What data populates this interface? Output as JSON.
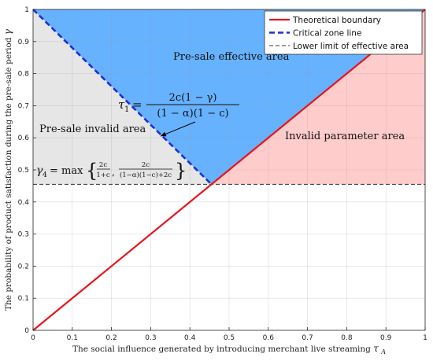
{
  "chart_data": {
    "type": "area",
    "xlabel": "The social influence generated by introducing merchant live streaming",
    "xlabel_symbol": "τ",
    "xlabel_sub": "A",
    "ylabel": "The probability of product satisfaction during the pre-sale period",
    "ylabel_symbol": "γ",
    "xlim": [
      0,
      1
    ],
    "ylim": [
      0,
      1
    ],
    "xticks": [
      "0",
      "0.1",
      "0.2",
      "0.3",
      "0.4",
      "0.5",
      "0.6",
      "0.7",
      "0.8",
      "0.9",
      "1"
    ],
    "yticks": [
      "0",
      "0.1",
      "0.2",
      "0.3",
      "0.4",
      "0.5",
      "0.6",
      "0.7",
      "0.8",
      "0.9",
      "1"
    ],
    "grid": true,
    "legend_position": "top-right",
    "intersection": {
      "x": 0.455,
      "y": 0.455
    },
    "series": [
      {
        "name": "Theoretical boundary",
        "style": "solid",
        "color": "#e8141c",
        "x": [
          0,
          1
        ],
        "y": [
          0,
          1
        ]
      },
      {
        "name": "Critical zone line",
        "style": "dashed",
        "color": "#1f2fd6",
        "x": [
          0,
          0.455
        ],
        "y": [
          1,
          0.455
        ]
      },
      {
        "name": "Lower limit of effective area",
        "style": "dashed-thin",
        "color": "#333333",
        "x": [
          0,
          1
        ],
        "y": [
          0.455,
          0.455
        ]
      }
    ],
    "regions": [
      {
        "label": "Pre-sale effective area",
        "color": "#66b2ff",
        "points": [
          [
            0,
            1
          ],
          [
            1,
            1
          ],
          [
            0.455,
            0.455
          ]
        ]
      },
      {
        "label": "Pre-sale invalid area",
        "color": "#e6e6e6",
        "points": [
          [
            0,
            1
          ],
          [
            0.455,
            0.455
          ],
          [
            0,
            0.455
          ]
        ]
      },
      {
        "label": "Invalid parameter area",
        "color": "#ffcccc",
        "points": [
          [
            1,
            1
          ],
          [
            1,
            0.455
          ],
          [
            0.455,
            0.455
          ]
        ]
      }
    ],
    "annotations": {
      "tau1": {
        "lhs_symbol": "τ",
        "lhs_sub": "1",
        "equals": "=",
        "numerator": "2c(1 − γ)",
        "denominator": "(1 − α)(1 − c)",
        "anchor": [
          0.36,
          0.74
        ],
        "arrow_to": [
          0.325,
          0.605
        ]
      },
      "gamma4": {
        "lhs_symbol": "γ",
        "lhs_sub": "4",
        "equals": "= max",
        "frac1_num": "2c",
        "frac1_den": "1+c",
        "separator": ",",
        "frac2_num": "2c",
        "frac2_den": "(1−α)(1−c)+2c"
      }
    }
  }
}
